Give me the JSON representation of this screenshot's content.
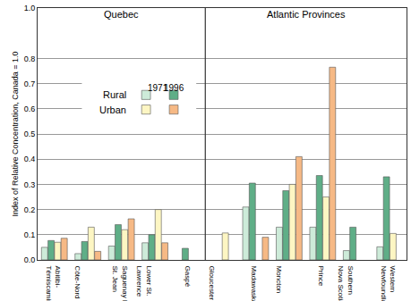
{
  "chart_data": {
    "type": "bar",
    "ylabel": "Index of Relative Concentration, Canada = 1.0",
    "categories": [
      "Abitibi-\nTémiscamingue",
      "Côte-Nord",
      "Saguenay Lac\nSt. Jean",
      "Lower St.\nLawrence",
      "Gaspé",
      "Gloucester",
      "Madawaska",
      "Moncton",
      "Prince",
      "Southern\nNova Scotia",
      "Western\nNewfoundland"
    ],
    "panels": [
      {
        "label": "Quebec",
        "categories": [
          "Abitibi-\nTémiscamingue",
          "Côte-Nord",
          "Saguenay Lac\nSt. Jean",
          "Lower St.\nLawrence",
          "Gaspé"
        ]
      },
      {
        "label": "Atlantic Provinces",
        "categories": [
          "Gloucester",
          "Madawaska",
          "Moncton",
          "Prince",
          "Southern\nNova Scotia",
          "Western\nNewfoundland"
        ]
      }
    ],
    "series": [
      {
        "name": "Rural",
        "year": "1971",
        "color": "#cdebd9",
        "values": [
          0.05,
          0.025,
          0.055,
          0.068,
          null,
          null,
          0.21,
          0.13,
          0.13,
          0.037,
          0.052
        ]
      },
      {
        "name": "Rural",
        "year": "1996",
        "color": "#5fae87",
        "values": [
          0.077,
          0.073,
          0.14,
          0.1,
          0.046,
          null,
          0.305,
          0.275,
          0.335,
          0.13,
          0.33
        ]
      },
      {
        "name": "Urban",
        "year": "1971",
        "color": "#fdf6c3",
        "values": [
          0.07,
          0.13,
          0.12,
          0.2,
          null,
          0.107,
          null,
          0.3,
          0.25,
          null,
          0.105
        ]
      },
      {
        "name": "Urban",
        "year": "1996",
        "color": "#f6b985",
        "values": [
          0.086,
          0.034,
          0.163,
          0.068,
          null,
          null,
          0.09,
          0.41,
          0.765,
          null,
          null
        ]
      }
    ],
    "ylim": [
      0,
      1.0
    ],
    "yticks": [
      {
        "value": 0,
        "label": "0.0"
      },
      0.1,
      0.2,
      0.3,
      0.4,
      0.5,
      0.6,
      0.7,
      0.8,
      {
        "value": 1,
        "label": "1.0"
      }
    ],
    "grid": true
  }
}
